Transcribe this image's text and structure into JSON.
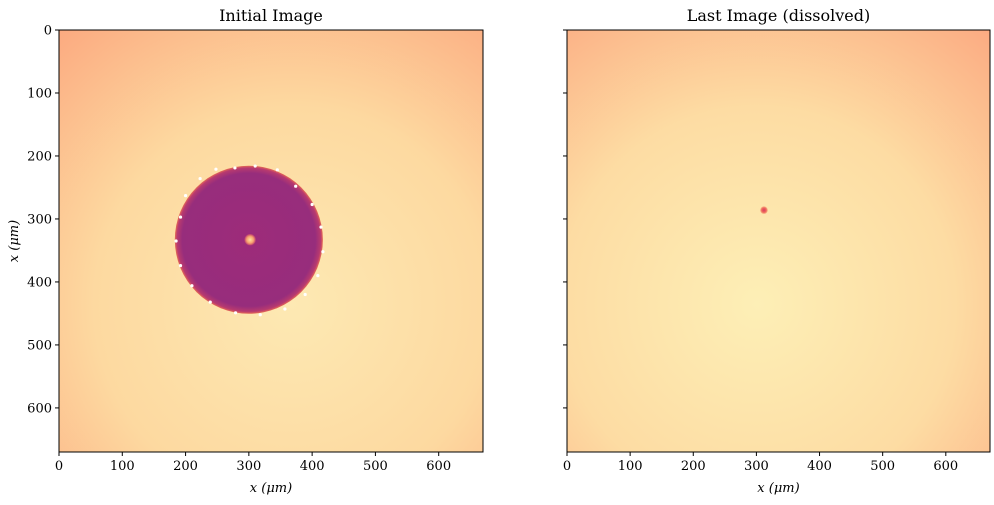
{
  "chart_data": [
    {
      "type": "image",
      "title": "Initial Image",
      "xlabel": "x (μm)",
      "ylabel": "x (μm)",
      "xlim": [
        0,
        670
      ],
      "ylim": [
        670,
        0
      ],
      "xticks": [
        0,
        100,
        200,
        300,
        400,
        500,
        600
      ],
      "yticks": [
        0,
        100,
        200,
        300,
        400,
        500,
        600
      ],
      "colormap": "magma",
      "background_colors": {
        "corner": "#fcaa80",
        "center": "#fde9b3"
      },
      "features": {
        "dark_disk": {
          "center": [
            300,
            333
          ],
          "radius": 117,
          "color": "#9a2d7b"
        },
        "bright_spot": {
          "center": [
            302,
            333
          ],
          "radius": 9,
          "color": "#fdd38c"
        },
        "edge_markers": [
          [
            200,
            263
          ],
          [
            223,
            236
          ],
          [
            248,
            221
          ],
          [
            278,
            219
          ],
          [
            310,
            216
          ],
          [
            345,
            222
          ],
          [
            374,
            248
          ],
          [
            400,
            277
          ],
          [
            414,
            313
          ],
          [
            417,
            352
          ],
          [
            409,
            390
          ],
          [
            389,
            420
          ],
          [
            357,
            443
          ],
          [
            318,
            452
          ],
          [
            279,
            449
          ],
          [
            239,
            432
          ],
          [
            210,
            406
          ],
          [
            192,
            374
          ],
          [
            185,
            335
          ],
          [
            192,
            297
          ]
        ]
      }
    },
    {
      "type": "image",
      "title": "Last Image (dissolved)",
      "xlabel": "x (μm)",
      "ylabel": "",
      "xlim": [
        0,
        670
      ],
      "ylim": [
        670,
        0
      ],
      "xticks": [
        0,
        100,
        200,
        300,
        400,
        500,
        600
      ],
      "yticks": [
        0,
        100,
        200,
        300,
        400,
        500,
        600
      ],
      "show_ytick_labels": false,
      "colormap": "magma",
      "background_colors": {
        "corner": "#fcaa80",
        "center": "#fdefb6"
      },
      "features": {
        "dark_spot": {
          "center": [
            312,
            286
          ],
          "radius": 6,
          "color": "#e8505f"
        }
      }
    }
  ]
}
